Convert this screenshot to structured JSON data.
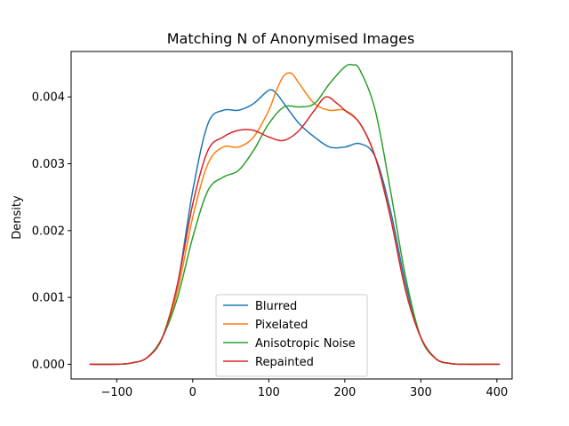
{
  "chart_data": {
    "type": "line",
    "title": "Matching N of Anonymised Images",
    "xlabel": "",
    "ylabel": "Density",
    "xlim": [
      -160,
      420
    ],
    "ylim": [
      -0.00022,
      0.00468
    ],
    "xticks": [
      -100,
      0,
      100,
      200,
      300,
      400
    ],
    "xtick_labels": [
      "−100",
      "0",
      "100",
      "200",
      "300",
      "400"
    ],
    "yticks": [
      0,
      0.001,
      0.002,
      0.003,
      0.004
    ],
    "ytick_labels": [
      "0.000",
      "0.001",
      "0.002",
      "0.003",
      "0.004"
    ],
    "grid": false,
    "legend_position": "lower-center",
    "series": [
      {
        "name": "Blurred",
        "color": "#1f77b4",
        "x": [
          -135,
          -100,
          -80,
          -60,
          -40,
          -20,
          0,
          20,
          40,
          60,
          80,
          100,
          110,
          120,
          140,
          160,
          180,
          200,
          220,
          240,
          260,
          280,
          300,
          320,
          340,
          360,
          380,
          403
        ],
        "y": [
          0,
          0,
          2e-05,
          0.0001,
          0.0004,
          0.0012,
          0.0026,
          0.0036,
          0.0038,
          0.0038,
          0.0039,
          0.0041,
          0.00405,
          0.0039,
          0.0036,
          0.0034,
          0.00325,
          0.00325,
          0.0033,
          0.0031,
          0.0023,
          0.0012,
          0.0004,
          8e-05,
          1e-05,
          0,
          0,
          0
        ]
      },
      {
        "name": "Pixelated",
        "color": "#ff7f0e",
        "x": [
          -135,
          -100,
          -80,
          -60,
          -40,
          -20,
          0,
          20,
          40,
          60,
          80,
          100,
          110,
          120,
          130,
          140,
          160,
          180,
          200,
          220,
          240,
          260,
          280,
          300,
          320,
          340,
          360,
          380,
          403
        ],
        "y": [
          0,
          0,
          2e-05,
          0.0001,
          0.0004,
          0.0011,
          0.0022,
          0.003,
          0.00325,
          0.00325,
          0.0034,
          0.0038,
          0.0041,
          0.00432,
          0.00435,
          0.0042,
          0.0039,
          0.0038,
          0.0038,
          0.0036,
          0.0031,
          0.0022,
          0.0011,
          0.0004,
          8e-05,
          1e-05,
          0,
          0,
          0
        ]
      },
      {
        "name": "Anisotropic Noise",
        "color": "#2ca02c",
        "x": [
          -135,
          -100,
          -80,
          -60,
          -40,
          -20,
          0,
          20,
          40,
          60,
          80,
          100,
          120,
          140,
          160,
          180,
          200,
          210,
          220,
          240,
          260,
          280,
          300,
          320,
          340,
          360,
          380,
          403
        ],
        "y": [
          0,
          0,
          2e-05,
          0.0001,
          0.0004,
          0.001,
          0.0019,
          0.0026,
          0.0028,
          0.0029,
          0.0032,
          0.0036,
          0.00385,
          0.00385,
          0.0039,
          0.0042,
          0.00445,
          0.00448,
          0.0044,
          0.0038,
          0.0026,
          0.0013,
          0.0004,
          8e-05,
          1e-05,
          0,
          0,
          0
        ]
      },
      {
        "name": "Repainted",
        "color": "#d62728",
        "x": [
          -135,
          -100,
          -80,
          -60,
          -40,
          -20,
          0,
          20,
          40,
          60,
          80,
          100,
          120,
          140,
          160,
          175,
          190,
          200,
          220,
          240,
          260,
          280,
          300,
          320,
          340,
          360,
          380,
          403
        ],
        "y": [
          0,
          0,
          2e-05,
          0.0001,
          0.0004,
          0.0012,
          0.0024,
          0.0032,
          0.0034,
          0.0035,
          0.0035,
          0.0034,
          0.00335,
          0.0035,
          0.0038,
          0.004,
          0.0039,
          0.0038,
          0.0036,
          0.0031,
          0.0022,
          0.0011,
          0.0004,
          8e-05,
          1e-05,
          0,
          0,
          0
        ]
      }
    ]
  }
}
